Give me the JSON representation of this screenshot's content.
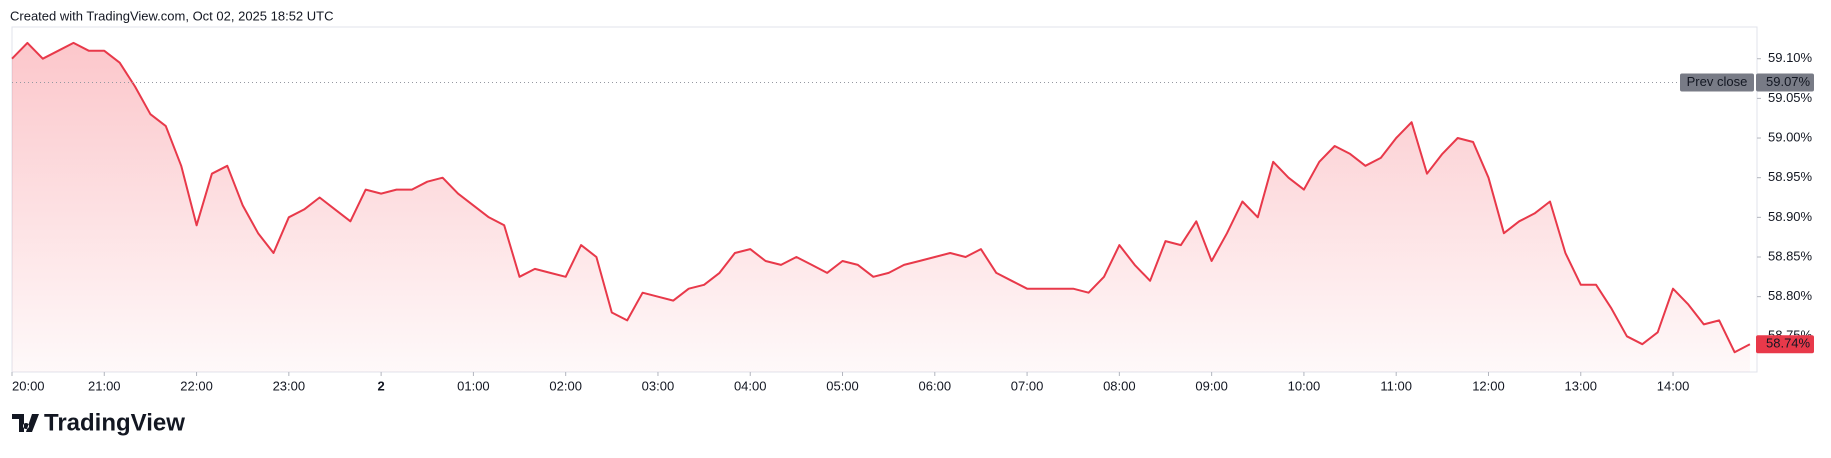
{
  "header": "Created with TradingView.com, Oct 02, 2025 18:52 UTC",
  "logo": "TradingView",
  "chart_data": {
    "type": "area",
    "color": "#e8394a",
    "categories": [
      "20:00",
      "20:10",
      "20:20",
      "20:30",
      "20:40",
      "20:50",
      "21:00",
      "21:10",
      "21:20",
      "21:30",
      "21:40",
      "21:50",
      "22:00",
      "22:10",
      "22:20",
      "22:30",
      "22:40",
      "22:50",
      "23:00",
      "23:10",
      "23:20",
      "23:30",
      "23:40",
      "23:50",
      "00:00",
      "00:10",
      "00:20",
      "00:30",
      "00:40",
      "00:50",
      "01:00",
      "01:10",
      "01:20",
      "01:30",
      "01:40",
      "01:50",
      "02:00",
      "02:10",
      "02:20",
      "02:30",
      "02:40",
      "02:50",
      "03:00",
      "03:10",
      "03:20",
      "03:30",
      "03:40",
      "03:50",
      "04:00",
      "04:10",
      "04:20",
      "04:30",
      "04:40",
      "04:50",
      "05:00",
      "05:10",
      "05:20",
      "05:30",
      "05:40",
      "05:50",
      "06:00",
      "06:10",
      "06:20",
      "06:30",
      "06:40",
      "06:50",
      "07:00",
      "07:10",
      "07:20",
      "07:30",
      "07:40",
      "07:50",
      "08:00",
      "08:10",
      "08:20",
      "08:30",
      "08:40",
      "08:50",
      "09:00",
      "09:10",
      "09:20",
      "09:30",
      "09:40",
      "09:50",
      "10:00",
      "10:10",
      "10:20",
      "10:30",
      "10:40",
      "10:50",
      "11:00",
      "11:10",
      "11:20",
      "11:30",
      "11:40",
      "11:50",
      "12:00",
      "12:10",
      "12:20",
      "12:30",
      "12:40",
      "12:50",
      "13:00",
      "13:10",
      "13:20",
      "13:30",
      "13:40",
      "13:50",
      "14:00",
      "14:10",
      "14:20",
      "14:30",
      "14:40",
      "14:50"
    ],
    "values": [
      59.1,
      59.12,
      59.1,
      59.11,
      59.12,
      59.11,
      59.11,
      59.095,
      59.065,
      59.03,
      59.015,
      58.965,
      58.89,
      58.955,
      58.965,
      58.915,
      58.88,
      58.855,
      58.9,
      58.91,
      58.925,
      58.91,
      58.895,
      58.935,
      58.93,
      58.935,
      58.935,
      58.945,
      58.95,
      58.93,
      58.915,
      58.9,
      58.89,
      58.825,
      58.835,
      58.83,
      58.825,
      58.865,
      58.85,
      58.78,
      58.77,
      58.805,
      58.8,
      58.795,
      58.81,
      58.815,
      58.83,
      58.855,
      58.86,
      58.845,
      58.84,
      58.85,
      58.84,
      58.83,
      58.845,
      58.84,
      58.825,
      58.83,
      58.84,
      58.845,
      58.85,
      58.855,
      58.85,
      58.86,
      58.83,
      58.82,
      58.81,
      58.81,
      58.81,
      58.81,
      58.805,
      58.825,
      58.865,
      58.84,
      58.82,
      58.87,
      58.865,
      58.895,
      58.845,
      58.88,
      58.92,
      58.9,
      58.97,
      58.95,
      58.935,
      58.97,
      58.99,
      58.98,
      58.965,
      58.975,
      59.0,
      59.02,
      58.955,
      58.98,
      59.0,
      58.995,
      58.95,
      58.88,
      58.895,
      58.905,
      58.92,
      58.855,
      58.815,
      58.815,
      58.785,
      58.75,
      58.74,
      58.755,
      58.81,
      58.79,
      58.765,
      58.77,
      58.73,
      58.74
    ],
    "last_label": "58.74%",
    "ylim": [
      58.705,
      59.14
    ],
    "yticks": [
      {
        "value": 58.75,
        "label": "58.75%"
      },
      {
        "value": 58.8,
        "label": "58.80%"
      },
      {
        "value": 58.85,
        "label": "58.85%"
      },
      {
        "value": 58.9,
        "label": "58.90%"
      },
      {
        "value": 58.95,
        "label": "58.95%"
      },
      {
        "value": 59.0,
        "label": "59.00%"
      },
      {
        "value": 59.05,
        "label": "59.05%"
      },
      {
        "value": 59.1,
        "label": "59.10%"
      }
    ],
    "xticks": [
      "20:00",
      "21:00",
      "22:00",
      "23:00",
      {
        "value": "00:00",
        "label": "2"
      },
      "01:00",
      "02:00",
      "03:00",
      "04:00",
      "05:00",
      "06:00",
      "07:00",
      "08:00",
      "09:00",
      "10:00",
      "11:00",
      "12:00",
      "13:00",
      "14:00"
    ],
    "prev_close": {
      "text": "Prev close",
      "value": 59.07,
      "label": "59.07%"
    }
  }
}
